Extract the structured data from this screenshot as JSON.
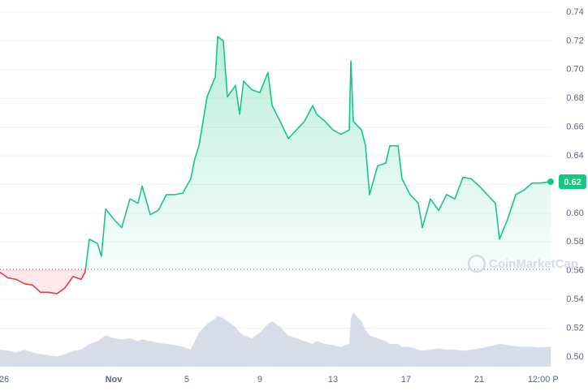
{
  "chart_data": {
    "type": "line",
    "x": [
      -0.22,
      0.22,
      0.67,
      1.11,
      1.56,
      2.0,
      2.44,
      2.89,
      3.33,
      3.78,
      4.22,
      4.44,
      4.67,
      5.11,
      5.33,
      5.56,
      6.0,
      6.44,
      6.89,
      7.33,
      7.56,
      8.0,
      8.44,
      8.89,
      9.33,
      9.78,
      10.22,
      10.44,
      10.67,
      11.11,
      11.56,
      11.69,
      12.0,
      12.22,
      12.67,
      12.89,
      13.11,
      13.56,
      14.0,
      14.44,
      14.67,
      15.11,
      15.56,
      16.0,
      16.44,
      16.89,
      17.11,
      17.56,
      18.0,
      18.44,
      18.89,
      18.98,
      19.11,
      19.56,
      19.78,
      20.0,
      20.44,
      20.89,
      21.11,
      21.56,
      21.78,
      22.22,
      22.67,
      22.89,
      23.33,
      23.78,
      24.22,
      24.67,
      25.11,
      25.56,
      26.0,
      26.44,
      26.89,
      27.11,
      27.56,
      28.0,
      28.44,
      28.89,
      29.33,
      29.91
    ],
    "series": [
      {
        "name": "price",
        "color": "#16c784",
        "below_color": "#ea3943",
        "values": [
          0.559,
          0.555,
          0.554,
          0.551,
          0.55,
          0.545,
          0.545,
          0.544,
          0.548,
          0.556,
          0.554,
          0.559,
          0.582,
          0.579,
          0.57,
          0.603,
          0.596,
          0.59,
          0.61,
          0.607,
          0.619,
          0.599,
          0.602,
          0.613,
          0.613,
          0.614,
          0.624,
          0.638,
          0.647,
          0.681,
          0.695,
          0.723,
          0.72,
          0.681,
          0.689,
          0.669,
          0.692,
          0.686,
          0.684,
          0.698,
          0.675,
          0.664,
          0.652,
          0.658,
          0.664,
          0.675,
          0.669,
          0.664,
          0.658,
          0.655,
          0.658,
          0.706,
          0.664,
          0.658,
          0.647,
          0.613,
          0.633,
          0.635,
          0.647,
          0.647,
          0.624,
          0.613,
          0.607,
          0.59,
          0.61,
          0.602,
          0.613,
          0.61,
          0.625,
          0.624,
          0.619,
          0.613,
          0.607,
          0.582,
          0.596,
          0.613,
          0.616,
          0.621,
          0.621,
          0.622
        ]
      },
      {
        "name": "volume",
        "color": "#cfd6e4",
        "values": [
          30,
          28,
          25,
          30,
          25,
          22,
          20,
          18,
          22,
          28,
          30,
          35,
          40,
          45,
          50,
          55,
          50,
          48,
          50,
          45,
          48,
          45,
          42,
          40,
          38,
          35,
          30,
          45,
          60,
          75,
          85,
          90,
          85,
          80,
          70,
          60,
          55,
          50,
          60,
          75,
          80,
          70,
          55,
          50,
          45,
          40,
          45,
          40,
          38,
          35,
          40,
          85,
          95,
          80,
          65,
          55,
          50,
          45,
          40,
          40,
          35,
          35,
          30,
          28,
          30,
          32,
          30,
          30,
          28,
          30,
          32,
          35,
          38,
          40,
          38,
          36,
          35,
          35,
          34,
          35
        ]
      }
    ],
    "baseline": 0.561,
    "current_label": "0.62",
    "watermark": "CoinMarketCap",
    "xlim": [
      -0.22,
      29.91
    ],
    "xticks": [
      {
        "value": 0,
        "label": "26"
      },
      {
        "value": 6,
        "label": "Nov"
      },
      {
        "value": 10,
        "label": "5"
      },
      {
        "value": 14,
        "label": "9"
      },
      {
        "value": 18,
        "label": "13"
      },
      {
        "value": 22,
        "label": "17"
      },
      {
        "value": 26,
        "label": "21"
      },
      {
        "value": 29.5,
        "label": "12:00 P"
      }
    ],
    "ylim": [
      0.5,
      0.74
    ],
    "yticks": [
      {
        "value": 0.5,
        "label": "0.50"
      },
      0.52,
      0.54,
      0.56,
      0.58,
      {
        "value": 0.6,
        "label": "0.60"
      },
      0.62,
      0.64,
      0.66,
      0.68,
      {
        "value": 0.7,
        "label": "0.70"
      },
      0.72,
      0.74
    ],
    "grid": true
  }
}
